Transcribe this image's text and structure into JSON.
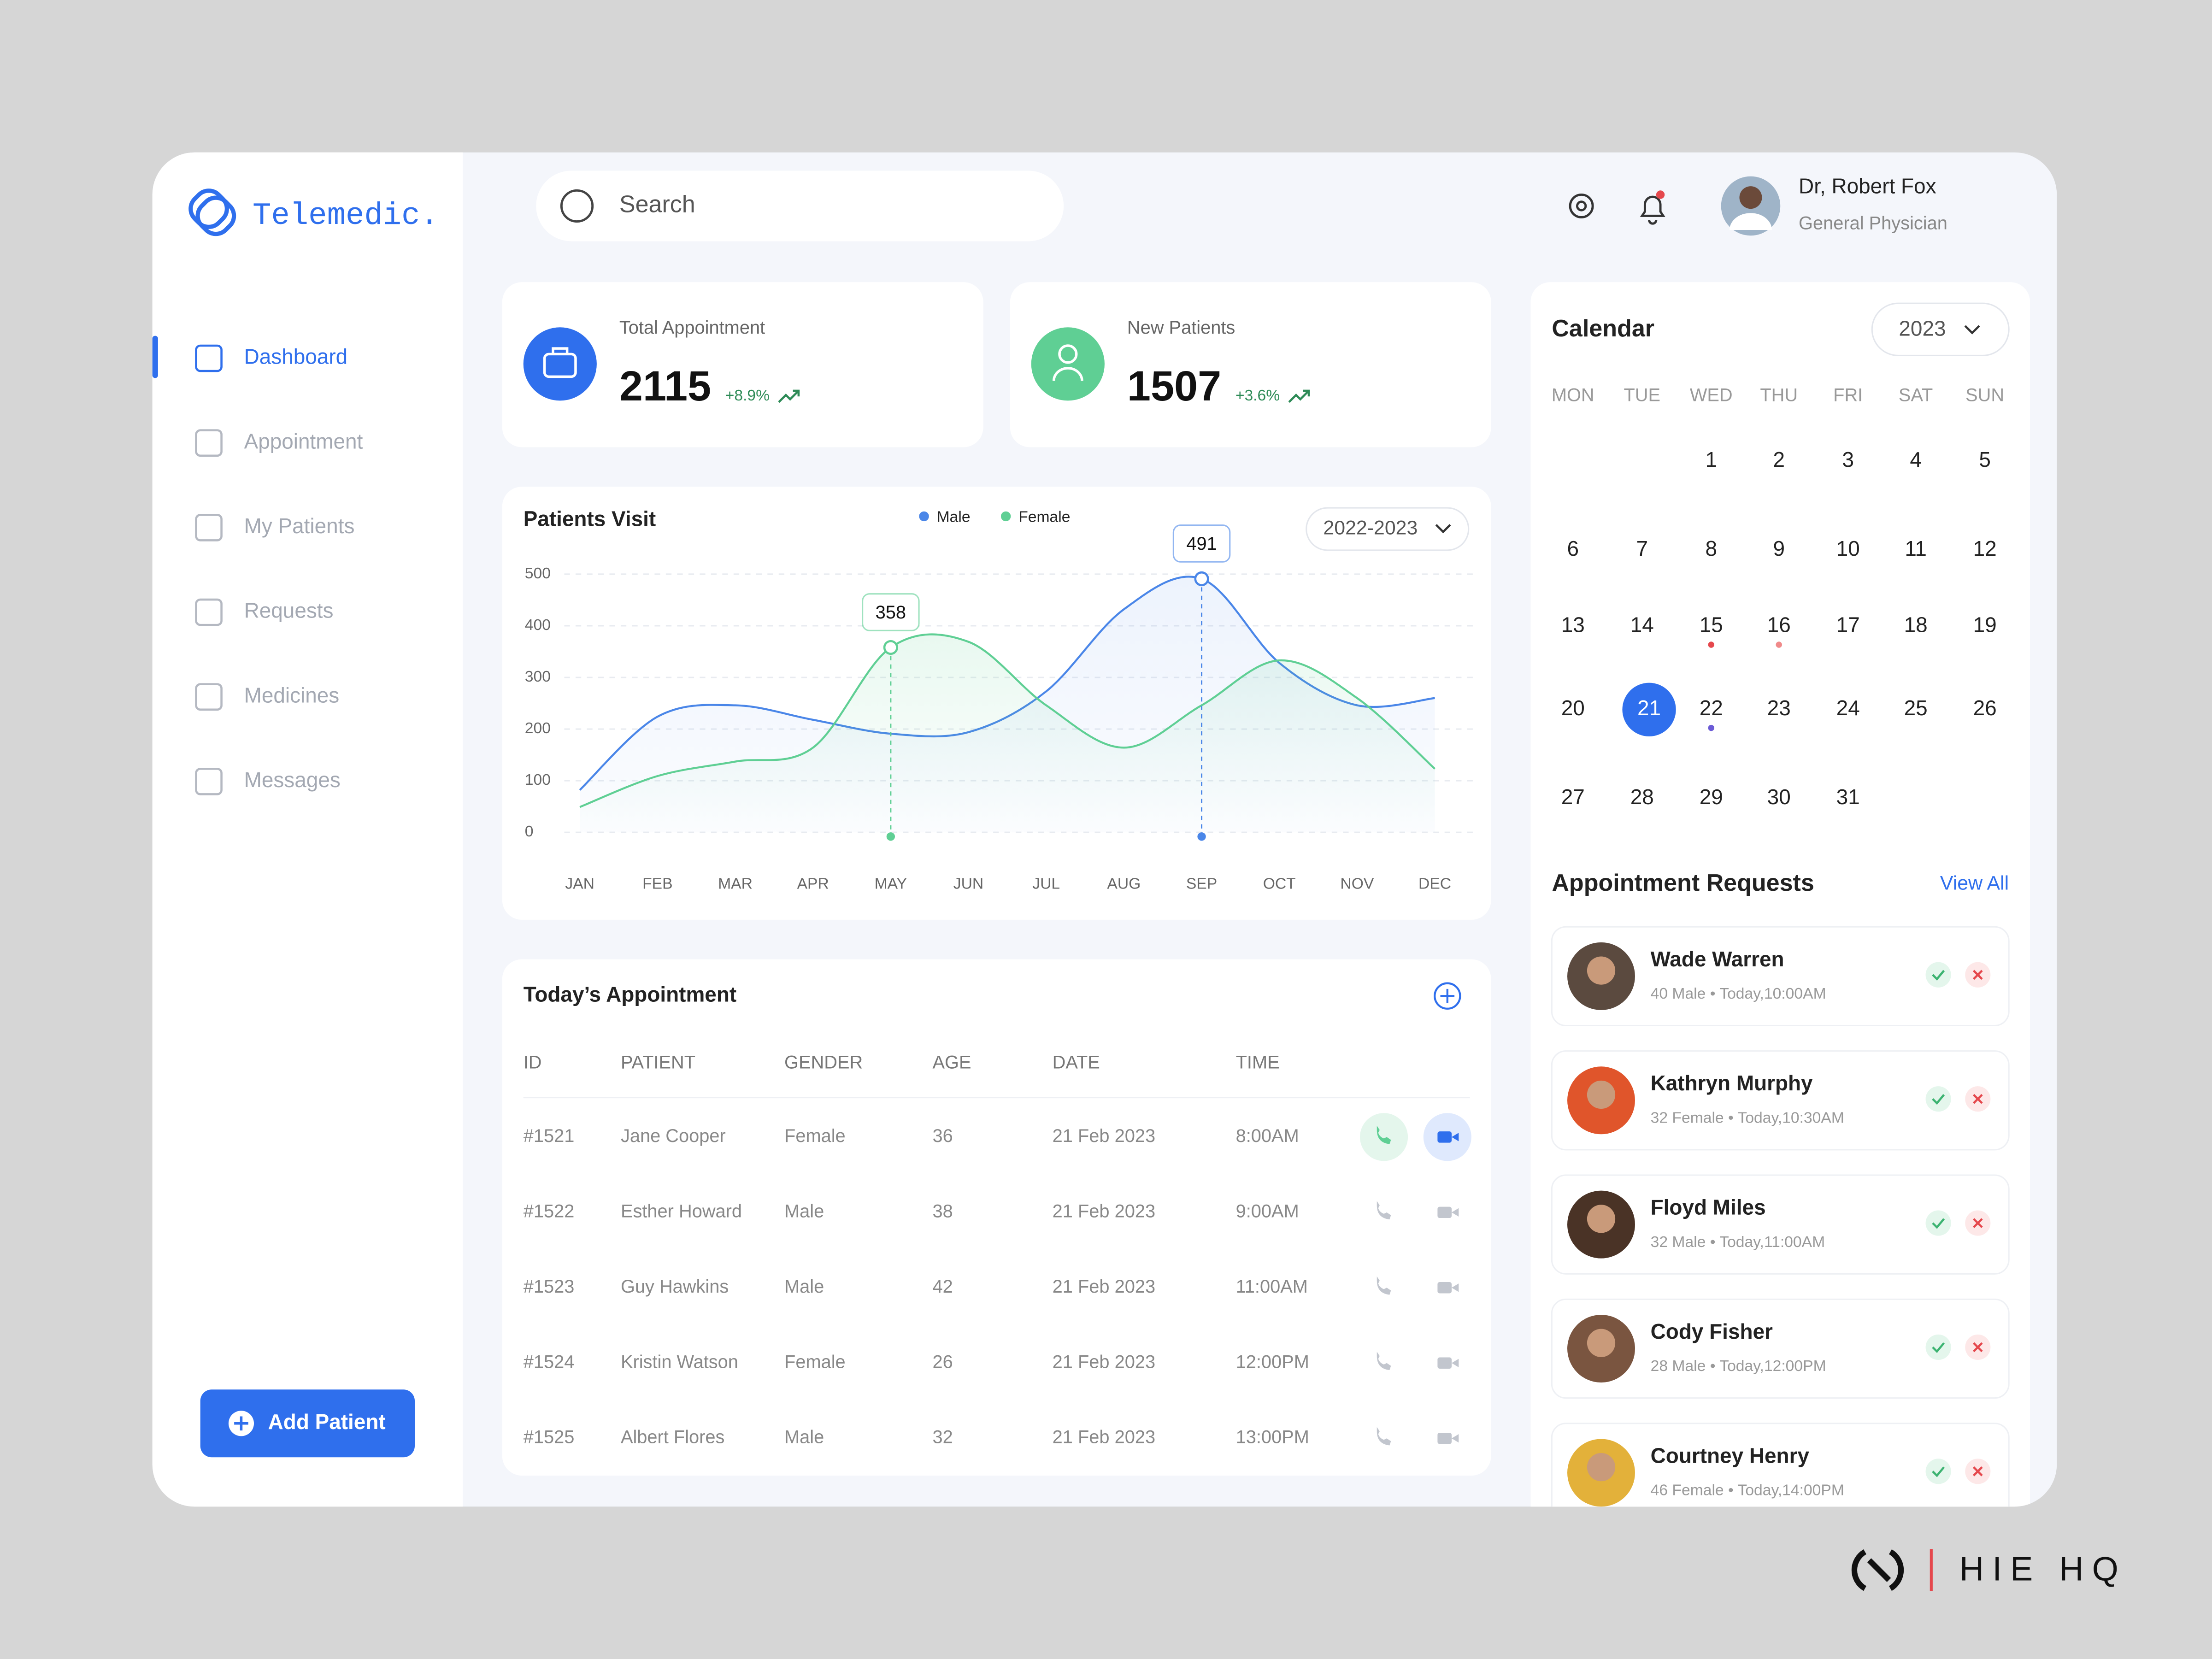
{
  "brand": "Telemedic.",
  "nav": [
    "Dashboard",
    "Appointment",
    "My Patients",
    "Requests",
    "Medicines",
    "Messages"
  ],
  "add_button": "Add Patient",
  "search_placeholder": "Search",
  "user": {
    "name": "Dr, Robert Fox",
    "role": "General Physician"
  },
  "stats": [
    {
      "label": "Total Appointment",
      "value": 2115,
      "change": "+8.9%"
    },
    {
      "label": "New Patients",
      "value": 1507,
      "change": "+3.6%"
    }
  ],
  "chart_data": {
    "type": "line",
    "title": "Patients Visit",
    "range_button": "2022-2023",
    "categories": [
      "JAN",
      "FEB",
      "MAR",
      "APR",
      "MAY",
      "JUN",
      "JUL",
      "AUG",
      "SEP",
      "OCT",
      "NOV",
      "DEC"
    ],
    "series": [
      {
        "name": "Male",
        "color": "#4a86e8",
        "values": [
          82,
          224,
          246,
          218,
          191,
          194,
          273,
          432,
          491,
          328,
          246,
          260
        ]
      },
      {
        "name": "Female",
        "color": "#5fcf94",
        "values": [
          49,
          109,
          137,
          164,
          358,
          369,
          246,
          164,
          246,
          333,
          260,
          123
        ]
      }
    ],
    "callouts": [
      {
        "series": 1,
        "index": 4
      },
      {
        "series": 0,
        "index": 8
      }
    ],
    "ylim": [
      0,
      500
    ],
    "yticks": [
      0,
      100,
      200,
      300,
      400,
      500
    ],
    "grid": true
  },
  "calendar": {
    "title": "Calendar",
    "year_button": "2023",
    "weekdays": [
      "MON",
      "TUE",
      "WED",
      "THU",
      "FRI",
      "SAT",
      "SUN"
    ],
    "days": [
      1,
      2,
      3,
      4,
      5,
      6,
      7,
      8,
      9,
      10,
      11,
      12,
      13,
      14,
      15,
      16,
      17,
      18,
      19,
      20,
      21,
      22,
      23,
      24,
      25,
      26,
      27,
      28,
      29,
      30,
      31
    ],
    "selected_day": 21,
    "marked_days": [
      {
        "day": 15,
        "color": "#e5484d"
      },
      {
        "day": 16,
        "color": "#f08a8a"
      },
      {
        "day": 22,
        "color": "#6b5bd6"
      }
    ]
  },
  "appointments": {
    "title": "Today’s Appointment",
    "columns": [
      "ID",
      "PATIENT",
      "GENDER",
      "AGE",
      "DATE",
      "TIME"
    ],
    "rows": [
      [
        "#1521",
        "Jane Cooper",
        "Female",
        36,
        "21 Feb 2023",
        "8:00AM"
      ],
      [
        "#1522",
        "Esther Howard",
        "Male",
        38,
        "21 Feb 2023",
        "9:00AM"
      ],
      [
        "#1523",
        "Guy Hawkins",
        "Male",
        42,
        "21 Feb 2023",
        "11:00AM"
      ],
      [
        "#1524",
        "Kristin Watson",
        "Female",
        26,
        "21 Feb 2023",
        "12:00PM"
      ],
      [
        "#1525",
        "Albert Flores",
        "Male",
        32,
        "21 Feb 2023",
        "13:00PM"
      ]
    ]
  },
  "requests": {
    "title": "Appointment Requests",
    "view_all": "View All",
    "items": [
      {
        "name": "Wade Warren",
        "details": "40 Male • Today,10:00AM"
      },
      {
        "name": "Kathryn Murphy",
        "details": "32 Female • Today,10:30AM"
      },
      {
        "name": "Floyd Miles",
        "details": "32 Male • Today,11:00AM"
      },
      {
        "name": "Cody Fisher",
        "details": "28 Male • Today,12:00PM"
      },
      {
        "name": "Courtney Henry",
        "details": "46 Female • Today,14:00PM"
      }
    ]
  },
  "watermark": "HIE HQ"
}
